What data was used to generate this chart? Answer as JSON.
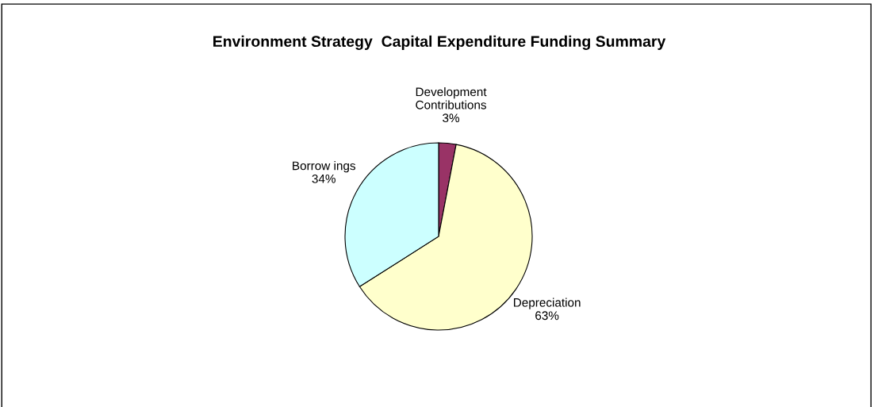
{
  "chart_data": {
    "type": "pie",
    "title": "Environment Strategy  Capital Expenditure Funding Summary",
    "categories": [
      "Development\nContributions",
      "Depreciation",
      "Borrow ings"
    ],
    "values": [
      3,
      63,
      34
    ],
    "value_labels": [
      "3%",
      "63%",
      "34%"
    ],
    "colors": [
      "#993366",
      "#ffffcc",
      "#ccffff"
    ],
    "legend": false
  }
}
